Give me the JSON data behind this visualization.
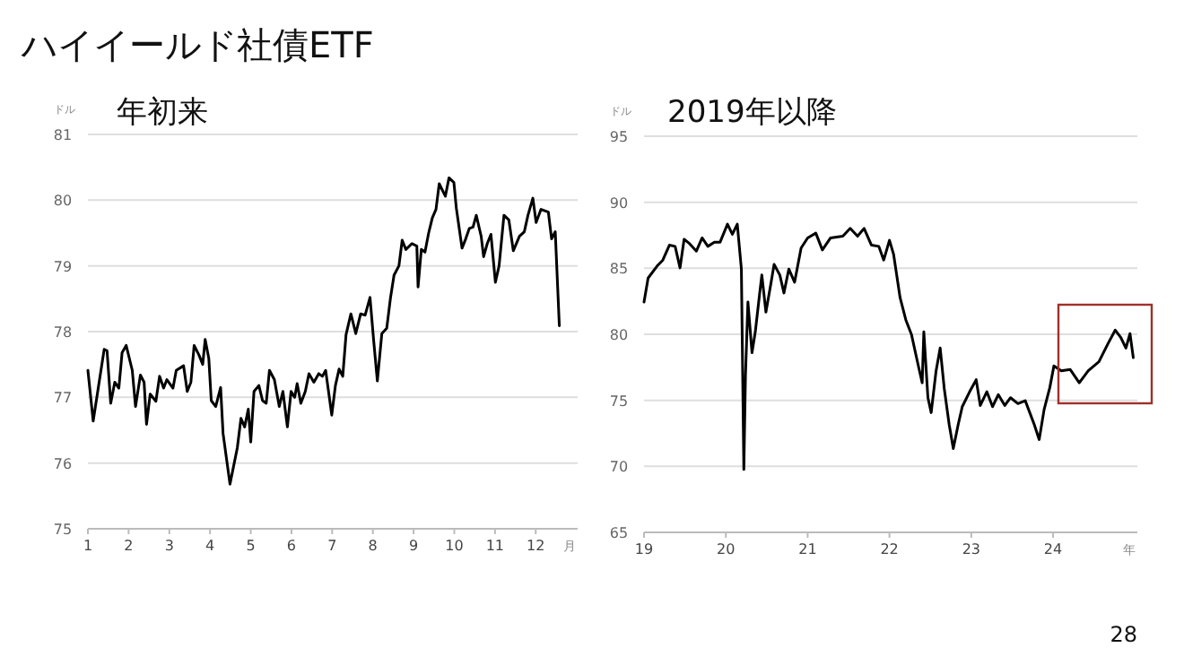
{
  "chart_data": [
    {
      "type": "line",
      "title": "ハイイールド社債ETF",
      "subtitle": "年初来",
      "ylabel": "ドル",
      "xlabel": "月",
      "xlim": [
        1,
        13.03
      ],
      "xticks": [
        1,
        2,
        3,
        4,
        5,
        6,
        7,
        8,
        9,
        10,
        11,
        12
      ],
      "ylim": [
        75,
        81
      ],
      "yticks": [
        75,
        76,
        77,
        78,
        79,
        80,
        81
      ],
      "grid": "y",
      "marker": "none",
      "line_style": "solid",
      "series": [
        {
          "color": "#000000",
          "x": [
            1,
            1.13,
            1.4,
            1.47,
            1.56,
            1.66,
            1.76,
            1.84,
            1.94,
            2.09,
            2.17,
            2.29,
            2.38,
            2.44,
            2.53,
            2.67,
            2.76,
            2.86,
            2.94,
            3.09,
            3.17,
            3.35,
            3.44,
            3.53,
            3.61,
            3.73,
            3.82,
            3.88,
            3.97,
            4.03,
            4.14,
            4.26,
            4.32,
            4.49,
            4.67,
            4.76,
            4.85,
            4.94,
            5.0,
            5.08,
            5.2,
            5.29,
            5.38,
            5.46,
            5.58,
            5.7,
            5.79,
            5.9,
            5.99,
            6.08,
            6.14,
            6.23,
            6.34,
            6.43,
            6.55,
            6.67,
            6.76,
            6.84,
            6.99,
            7.08,
            7.17,
            7.26,
            7.34,
            7.46,
            7.58,
            7.7,
            7.81,
            7.93,
            8.02,
            8.11,
            8.22,
            8.34,
            8.43,
            8.52,
            8.64,
            8.72,
            8.81,
            8.96,
            9.08,
            9.11,
            9.19,
            9.28,
            9.37,
            9.46,
            9.55,
            9.63,
            9.78,
            9.87,
            9.99,
            10.05,
            10.19,
            10.28,
            10.37,
            10.46,
            10.54,
            10.66,
            10.72,
            10.81,
            10.9,
            11.01,
            11.1,
            11.22,
            11.34,
            11.45,
            11.6,
            11.72,
            11.81,
            11.93,
            12.01,
            12.13,
            12.31,
            12.39,
            12.48,
            12.58
          ],
          "values": [
            77.41,
            76.64,
            77.73,
            77.71,
            76.91,
            77.23,
            77.14,
            77.68,
            77.79,
            77.41,
            76.86,
            77.34,
            77.23,
            76.59,
            77.05,
            76.94,
            77.32,
            77.14,
            77.27,
            77.14,
            77.41,
            77.48,
            77.09,
            77.23,
            77.79,
            77.64,
            77.5,
            77.88,
            77.59,
            76.95,
            76.86,
            77.15,
            76.45,
            75.68,
            76.23,
            76.68,
            76.55,
            76.82,
            76.32,
            77.09,
            77.18,
            76.95,
            76.91,
            77.41,
            77.27,
            76.86,
            77.09,
            76.55,
            77.09,
            77.0,
            77.21,
            76.91,
            77.09,
            77.36,
            77.23,
            77.36,
            77.32,
            77.41,
            76.73,
            77.18,
            77.43,
            77.32,
            77.95,
            78.27,
            77.97,
            78.27,
            78.25,
            78.52,
            77.86,
            77.25,
            77.97,
            78.05,
            78.5,
            78.86,
            79.0,
            79.39,
            79.25,
            79.34,
            79.3,
            78.68,
            79.25,
            79.21,
            79.5,
            79.73,
            79.86,
            80.25,
            80.06,
            80.34,
            80.27,
            79.88,
            79.27,
            79.41,
            79.57,
            79.59,
            79.77,
            79.45,
            79.14,
            79.34,
            79.48,
            78.75,
            79.0,
            79.77,
            79.7,
            79.23,
            79.45,
            79.52,
            79.77,
            80.03,
            79.66,
            79.86,
            79.82,
            79.41,
            79.52,
            78.09
          ]
        }
      ]
    },
    {
      "type": "line",
      "subtitle": "2019年以降",
      "ylabel": "ドル",
      "xlabel": "年",
      "xlim": [
        19,
        25.03
      ],
      "xticks": [
        19,
        20,
        21,
        22,
        23,
        24
      ],
      "ylim": [
        65,
        95
      ],
      "yticks": [
        65,
        70,
        75,
        80,
        85,
        90,
        95
      ],
      "grid": "y",
      "marker": "none",
      "line_style": "solid",
      "annotations": [
        "28"
      ],
      "series": [
        {
          "color": "#000000",
          "x": [
            19.0,
            19.05,
            19.16,
            19.23,
            19.31,
            19.38,
            19.44,
            19.49,
            19.56,
            19.64,
            19.71,
            19.78,
            19.86,
            19.93,
            20.02,
            20.08,
            20.14,
            20.19,
            20.22,
            20.24,
            20.27,
            20.32,
            20.36,
            20.41,
            20.44,
            20.49,
            20.55,
            20.59,
            20.66,
            20.71,
            20.77,
            20.84,
            20.92,
            21.0,
            21.1,
            21.18,
            21.28,
            21.43,
            21.52,
            21.61,
            21.69,
            21.78,
            21.87,
            21.93,
            22.0,
            22.05,
            22.13,
            22.2,
            22.27,
            22.35,
            22.4,
            22.42,
            22.47,
            22.51,
            22.57,
            22.62,
            22.67,
            22.73,
            22.78,
            22.84,
            22.89,
            22.98,
            23.06,
            23.11,
            23.19,
            23.26,
            23.33,
            23.41,
            23.48,
            23.57,
            23.66,
            23.77,
            23.83,
            23.89,
            23.96,
            24.01,
            24.1,
            24.21,
            24.32,
            24.43,
            24.56,
            24.67,
            24.76,
            24.83,
            24.89,
            24.94,
            24.98
          ],
          "values": [
            82.45,
            84.26,
            85.17,
            85.62,
            86.75,
            86.66,
            85.03,
            87.2,
            86.84,
            86.3,
            87.3,
            86.66,
            86.98,
            86.98,
            88.34,
            87.57,
            88.34,
            84.94,
            69.76,
            76.88,
            82.45,
            78.6,
            80.18,
            82.9,
            84.49,
            81.68,
            83.81,
            85.3,
            84.49,
            83.13,
            84.94,
            83.94,
            86.53,
            87.3,
            87.66,
            86.39,
            87.3,
            87.43,
            88.02,
            87.43,
            88.02,
            86.75,
            86.66,
            85.62,
            87.12,
            86.07,
            82.77,
            81.09,
            79.96,
            77.69,
            76.33,
            80.18,
            75.2,
            74.07,
            77.24,
            78.96,
            75.88,
            73.16,
            71.35,
            73.16,
            74.52,
            75.65,
            76.56,
            74.61,
            75.65,
            74.52,
            75.43,
            74.61,
            75.2,
            74.75,
            74.97,
            73.16,
            72.03,
            74.29,
            75.97,
            77.6,
            77.24,
            77.33,
            76.33,
            77.24,
            77.92,
            79.28,
            80.32,
            79.73,
            78.96,
            80.05,
            78.24
          ]
        }
      ]
    }
  ]
}
